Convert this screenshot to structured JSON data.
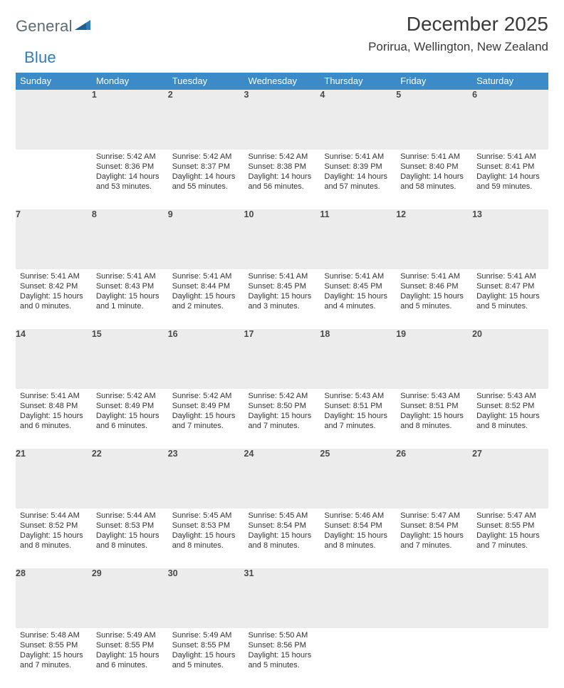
{
  "brand": {
    "part1": "General",
    "part2": "Blue"
  },
  "title": "December 2025",
  "location": "Porirua, Wellington, New Zealand",
  "colors": {
    "header_bg": "#3b8bc9",
    "row_sep": "#2f6fa8",
    "daynum_bg": "#ececec",
    "brand_gray": "#5f6b73",
    "brand_blue": "#2f7bbf"
  },
  "days_of_week": [
    "Sunday",
    "Monday",
    "Tuesday",
    "Wednesday",
    "Thursday",
    "Friday",
    "Saturday"
  ],
  "weeks": [
    {
      "nums": [
        "",
        "1",
        "2",
        "3",
        "4",
        "5",
        "6"
      ],
      "cells": [
        null,
        {
          "sunrise": "5:42 AM",
          "sunset": "8:36 PM",
          "daylight": "14 hours and 53 minutes."
        },
        {
          "sunrise": "5:42 AM",
          "sunset": "8:37 PM",
          "daylight": "14 hours and 55 minutes."
        },
        {
          "sunrise": "5:42 AM",
          "sunset": "8:38 PM",
          "daylight": "14 hours and 56 minutes."
        },
        {
          "sunrise": "5:41 AM",
          "sunset": "8:39 PM",
          "daylight": "14 hours and 57 minutes."
        },
        {
          "sunrise": "5:41 AM",
          "sunset": "8:40 PM",
          "daylight": "14 hours and 58 minutes."
        },
        {
          "sunrise": "5:41 AM",
          "sunset": "8:41 PM",
          "daylight": "14 hours and 59 minutes."
        }
      ]
    },
    {
      "nums": [
        "7",
        "8",
        "9",
        "10",
        "11",
        "12",
        "13"
      ],
      "cells": [
        {
          "sunrise": "5:41 AM",
          "sunset": "8:42 PM",
          "daylight": "15 hours and 0 minutes."
        },
        {
          "sunrise": "5:41 AM",
          "sunset": "8:43 PM",
          "daylight": "15 hours and 1 minute."
        },
        {
          "sunrise": "5:41 AM",
          "sunset": "8:44 PM",
          "daylight": "15 hours and 2 minutes."
        },
        {
          "sunrise": "5:41 AM",
          "sunset": "8:45 PM",
          "daylight": "15 hours and 3 minutes."
        },
        {
          "sunrise": "5:41 AM",
          "sunset": "8:45 PM",
          "daylight": "15 hours and 4 minutes."
        },
        {
          "sunrise": "5:41 AM",
          "sunset": "8:46 PM",
          "daylight": "15 hours and 5 minutes."
        },
        {
          "sunrise": "5:41 AM",
          "sunset": "8:47 PM",
          "daylight": "15 hours and 5 minutes."
        }
      ]
    },
    {
      "nums": [
        "14",
        "15",
        "16",
        "17",
        "18",
        "19",
        "20"
      ],
      "cells": [
        {
          "sunrise": "5:41 AM",
          "sunset": "8:48 PM",
          "daylight": "15 hours and 6 minutes."
        },
        {
          "sunrise": "5:42 AM",
          "sunset": "8:49 PM",
          "daylight": "15 hours and 6 minutes."
        },
        {
          "sunrise": "5:42 AM",
          "sunset": "8:49 PM",
          "daylight": "15 hours and 7 minutes."
        },
        {
          "sunrise": "5:42 AM",
          "sunset": "8:50 PM",
          "daylight": "15 hours and 7 minutes."
        },
        {
          "sunrise": "5:43 AM",
          "sunset": "8:51 PM",
          "daylight": "15 hours and 7 minutes."
        },
        {
          "sunrise": "5:43 AM",
          "sunset": "8:51 PM",
          "daylight": "15 hours and 8 minutes."
        },
        {
          "sunrise": "5:43 AM",
          "sunset": "8:52 PM",
          "daylight": "15 hours and 8 minutes."
        }
      ]
    },
    {
      "nums": [
        "21",
        "22",
        "23",
        "24",
        "25",
        "26",
        "27"
      ],
      "cells": [
        {
          "sunrise": "5:44 AM",
          "sunset": "8:52 PM",
          "daylight": "15 hours and 8 minutes."
        },
        {
          "sunrise": "5:44 AM",
          "sunset": "8:53 PM",
          "daylight": "15 hours and 8 minutes."
        },
        {
          "sunrise": "5:45 AM",
          "sunset": "8:53 PM",
          "daylight": "15 hours and 8 minutes."
        },
        {
          "sunrise": "5:45 AM",
          "sunset": "8:54 PM",
          "daylight": "15 hours and 8 minutes."
        },
        {
          "sunrise": "5:46 AM",
          "sunset": "8:54 PM",
          "daylight": "15 hours and 8 minutes."
        },
        {
          "sunrise": "5:47 AM",
          "sunset": "8:54 PM",
          "daylight": "15 hours and 7 minutes."
        },
        {
          "sunrise": "5:47 AM",
          "sunset": "8:55 PM",
          "daylight": "15 hours and 7 minutes."
        }
      ]
    },
    {
      "nums": [
        "28",
        "29",
        "30",
        "31",
        "",
        "",
        ""
      ],
      "cells": [
        {
          "sunrise": "5:48 AM",
          "sunset": "8:55 PM",
          "daylight": "15 hours and 7 minutes."
        },
        {
          "sunrise": "5:49 AM",
          "sunset": "8:55 PM",
          "daylight": "15 hours and 6 minutes."
        },
        {
          "sunrise": "5:49 AM",
          "sunset": "8:55 PM",
          "daylight": "15 hours and 5 minutes."
        },
        {
          "sunrise": "5:50 AM",
          "sunset": "8:56 PM",
          "daylight": "15 hours and 5 minutes."
        },
        null,
        null,
        null
      ]
    }
  ],
  "labels": {
    "sunrise": "Sunrise: ",
    "sunset": "Sunset: ",
    "daylight": "Daylight: "
  }
}
